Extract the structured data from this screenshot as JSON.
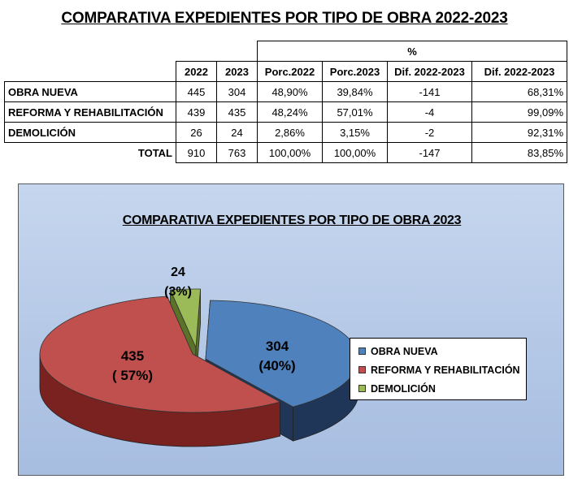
{
  "title": "COMPARATIVA EXPEDIENTES POR TIPO DE OBRA 2022-2023",
  "table": {
    "group_header": "%",
    "headers": [
      "2022",
      "2023",
      "Porc.2022",
      "Porc.2023",
      "Dif. 2022-2023",
      "Dif. 2022-2023"
    ],
    "rows": [
      {
        "label": "OBRA NUEVA",
        "v2022": "445",
        "v2023": "304",
        "p2022": "48,90%",
        "p2023": "39,84%",
        "dif": "-141",
        "difp": "68,31%"
      },
      {
        "label": "REFORMA Y REHABILITACIÓN",
        "v2022": "439",
        "v2023": "435",
        "p2022": "48,24%",
        "p2023": "57,01%",
        "dif": "-4",
        "difp": "99,09%"
      },
      {
        "label": "DEMOLICIÓN",
        "v2022": "26",
        "v2023": "24",
        "p2022": "2,86%",
        "p2023": "3,15%",
        "dif": "-2",
        "difp": "92,31%"
      }
    ],
    "total": {
      "label": "TOTAL",
      "v2022": "910",
      "v2023": "763",
      "p2022": "100,00%",
      "p2023": "100,00%",
      "dif": "-147",
      "difp": "83,85%"
    }
  },
  "chart_data": {
    "type": "pie",
    "title": "COMPARATIVA EXPEDIENTES POR TIPO DE OBRA 2023",
    "style": "3d-exploded",
    "legend_position": "right",
    "slices": [
      {
        "name": "OBRA NUEVA",
        "value": 304,
        "label": "304",
        "pct": "(40%)",
        "color": "#4f81bd",
        "side": "#1f3658"
      },
      {
        "name": "REFORMA Y REHABILITACIÓN",
        "value": 435,
        "label": "435",
        "pct": "( 57%)",
        "color": "#c0504d",
        "side": "#7a2220"
      },
      {
        "name": "DEMOLICIÓN",
        "value": 24,
        "label": "24",
        "pct": "(3%)",
        "color": "#9bbb59",
        "side": "#5a7328"
      }
    ]
  }
}
